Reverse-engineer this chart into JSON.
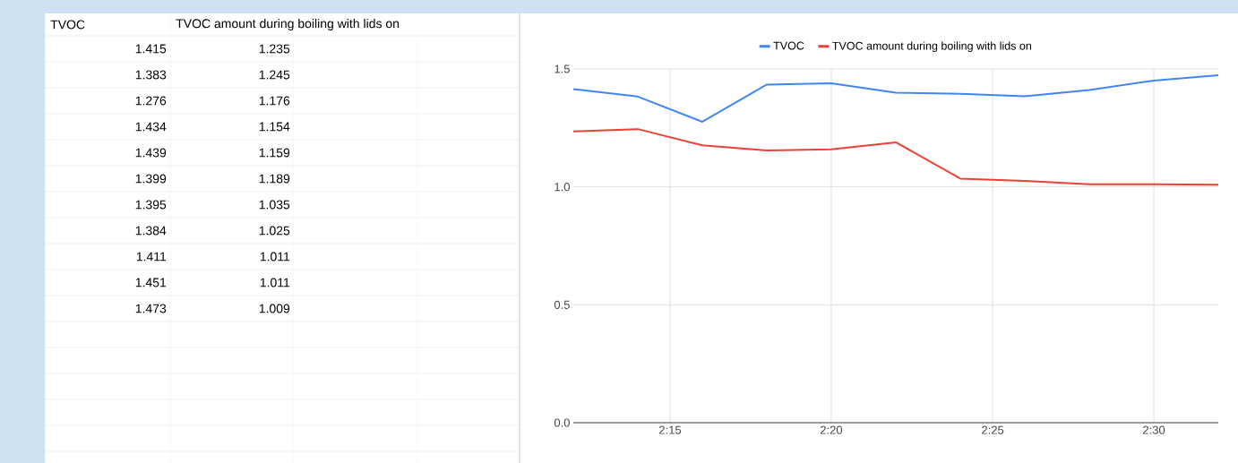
{
  "chart_data": {
    "type": "line",
    "x": [
      2.2,
      2.2333,
      2.2667,
      2.3,
      2.3333,
      2.3667,
      2.4,
      2.4333,
      2.4667,
      2.5,
      2.5333
    ],
    "series": [
      {
        "name": "TVOC",
        "color": "#4285f4",
        "values": [
          1.415,
          1.383,
          1.276,
          1.434,
          1.439,
          1.399,
          1.395,
          1.384,
          1.411,
          1.451,
          1.473
        ]
      },
      {
        "name": "TVOC amount during boiling with lids on",
        "color": "#ea4335",
        "values": [
          1.235,
          1.245,
          1.176,
          1.154,
          1.159,
          1.189,
          1.035,
          1.025,
          1.011,
          1.011,
          1.009
        ]
      }
    ],
    "xlim": [
      2.2,
      2.5333
    ],
    "xticks": [
      {
        "value": 2.25,
        "label": "2:15"
      },
      {
        "value": 2.3333,
        "label": "2:20"
      },
      {
        "value": 2.4167,
        "label": "2:25"
      },
      {
        "value": 2.5,
        "label": "2:30"
      }
    ],
    "ylim": [
      0,
      1.5
    ],
    "yticks": [
      {
        "value": 0,
        "label": "0.0"
      },
      {
        "value": 0.5,
        "label": "0.5"
      },
      {
        "value": 1,
        "label": "1.0"
      },
      {
        "value": 1.5,
        "label": "1.5"
      }
    ],
    "annotations": [
      "1.415",
      "1.383",
      "1.276",
      "1.434",
      "1.439",
      "1.399",
      "1.395",
      "1.384",
      "1.411",
      "1.451",
      "1.473",
      "1.235",
      "1.245",
      "1.176",
      "1.154",
      "1.159",
      "1.189",
      "1.035",
      "1.025",
      "1.011",
      "1.011",
      "1.009"
    ],
    "grid": true,
    "legend": "top",
    "marker": "none",
    "line_style": "solid"
  }
}
